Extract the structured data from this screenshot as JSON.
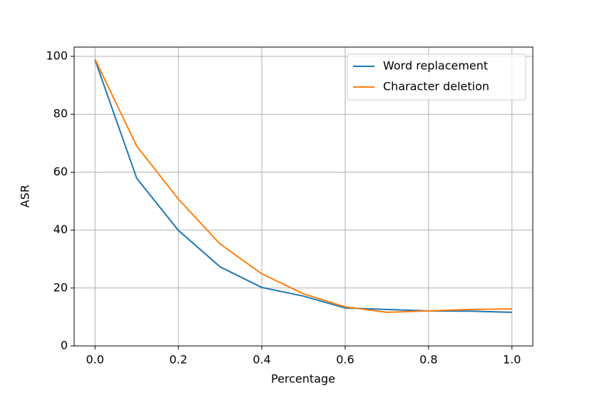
{
  "chart_data": {
    "type": "line",
    "x_label": "Percentage",
    "y_label": "ASR",
    "x": [
      0,
      0.1,
      0.2,
      0.3,
      0.4,
      0.5,
      0.6,
      0.7,
      0.8,
      0.9,
      1.0
    ],
    "series": [
      {
        "name": "Word replacement",
        "color": "#1f77b4",
        "values": [
          98.8,
          57.9,
          39.9,
          27.3,
          20.2,
          17.2,
          13.1,
          12.6,
          12.1,
          12.0,
          11.6
        ]
      },
      {
        "name": "Character deletion",
        "color": "#ff7f0e",
        "values": [
          99.0,
          69.0,
          50.7,
          35.2,
          24.9,
          18.0,
          13.5,
          11.6,
          12.1,
          12.6,
          12.8
        ]
      }
    ],
    "xlim": [
      -0.05,
      1.05
    ],
    "xticks": [
      {
        "value": 0,
        "label": "0.0"
      },
      0.2,
      0.4,
      0.6,
      0.8,
      {
        "value": 1,
        "label": "1.0"
      }
    ],
    "ylim": [
      0,
      103.2
    ],
    "yticks": [
      0,
      20,
      40,
      60,
      80,
      100
    ],
    "grid": true,
    "legend": "upper-right"
  }
}
